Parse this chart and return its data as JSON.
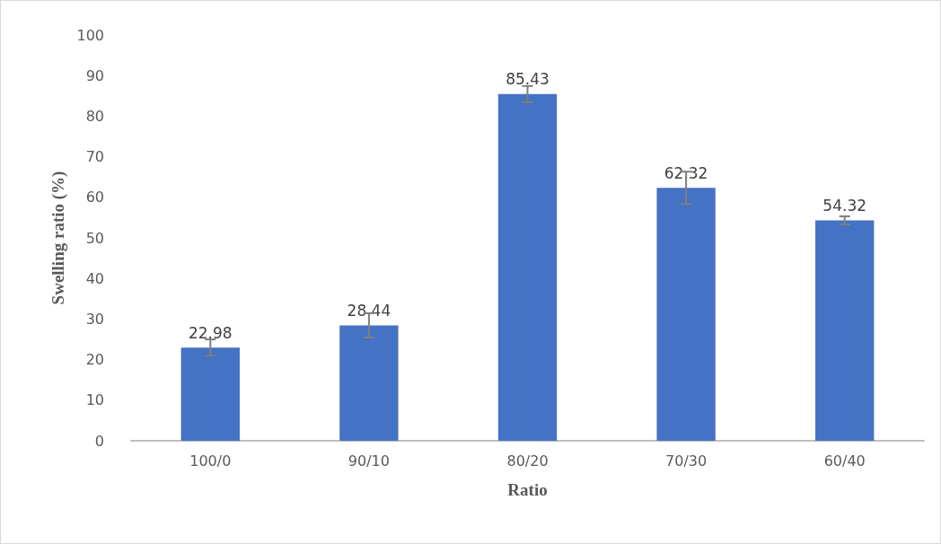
{
  "chart_data": {
    "type": "bar",
    "xlabel": "Ratio",
    "ylabel": "Swelling ratio (%)",
    "categories": [
      "100/0",
      "90/10",
      "80/20",
      "70/30",
      "60/40"
    ],
    "values": [
      22.98,
      28.44,
      85.43,
      62.32,
      54.32
    ],
    "errors": [
      2,
      3,
      2,
      4,
      1
    ],
    "color": "#4472c4",
    "ylim": [
      0,
      100
    ],
    "yticks": [
      0,
      10,
      20,
      30,
      40,
      50,
      60,
      70,
      80,
      90,
      100
    ],
    "data_labels": true,
    "grid": false
  }
}
